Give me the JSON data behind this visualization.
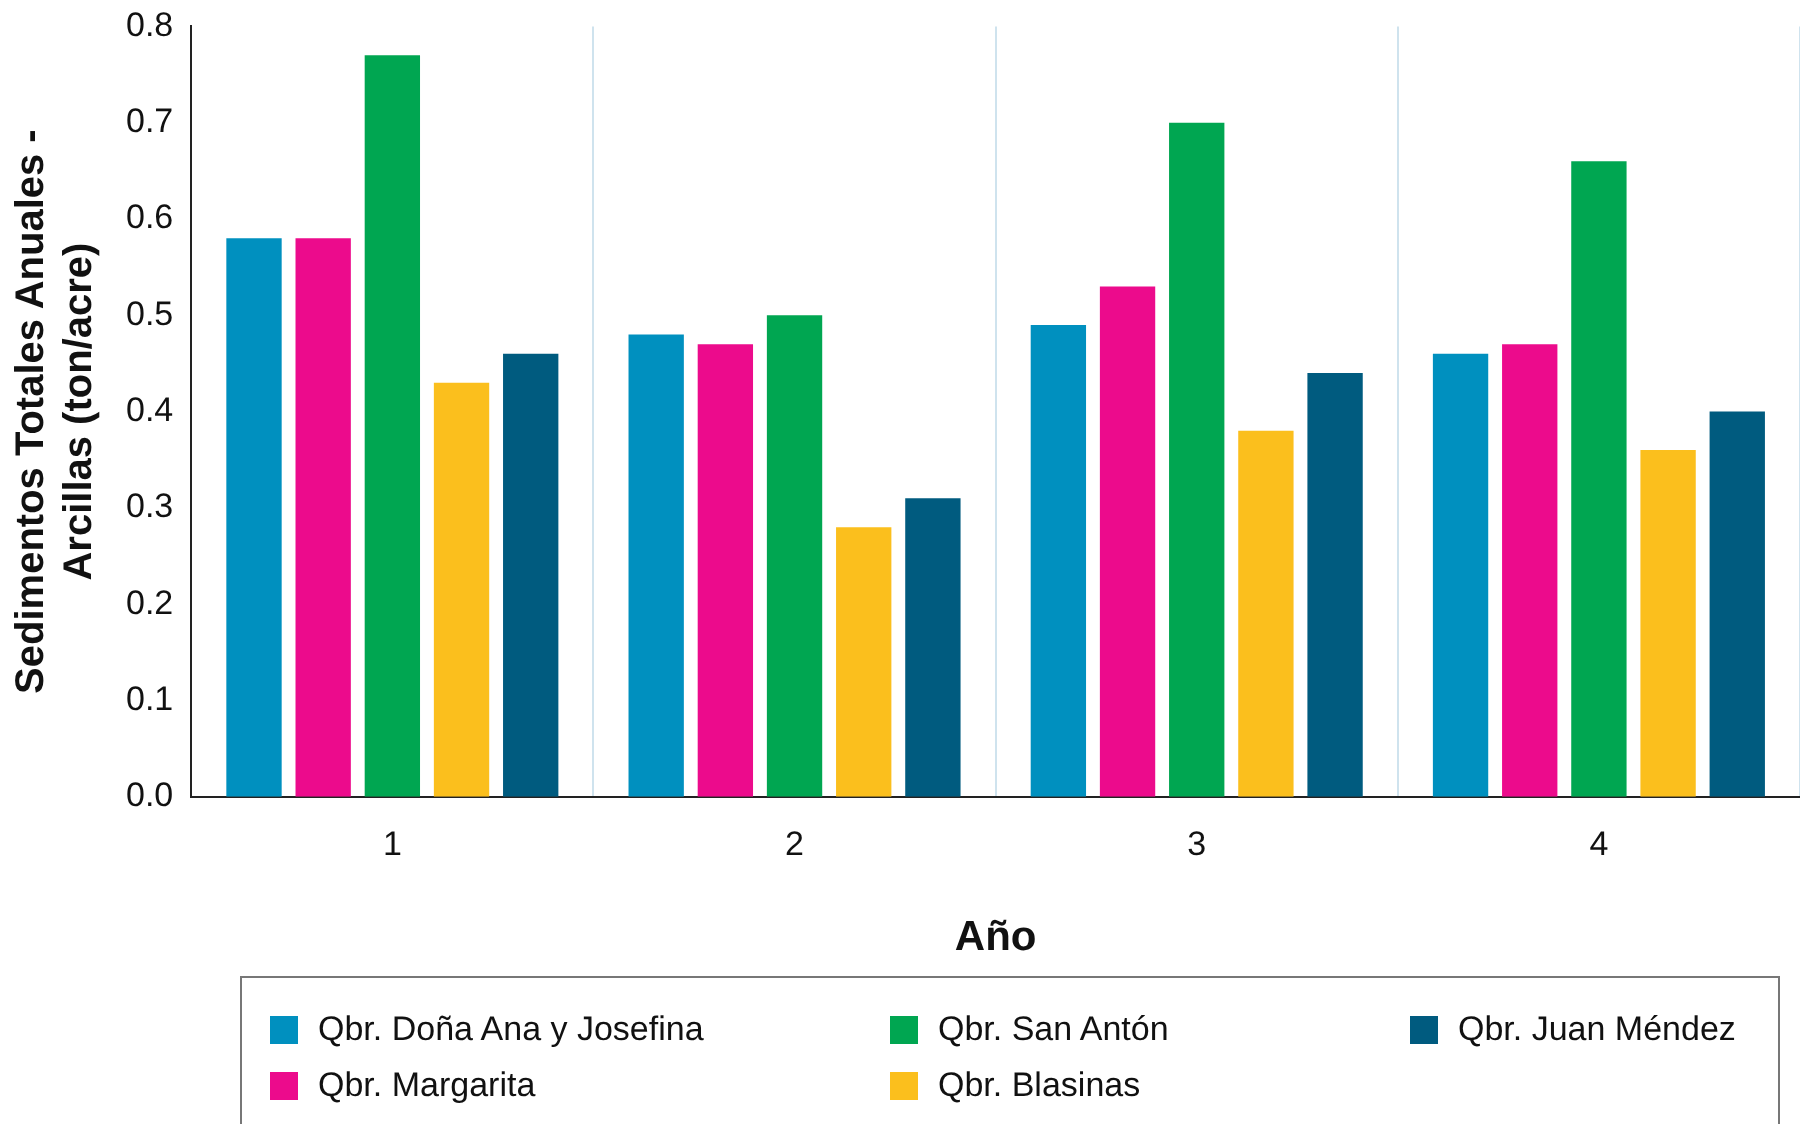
{
  "chart_data": {
    "type": "bar",
    "xlabel": "Año",
    "ylabel": "Sedimentos Totales Anuales -\nArcillas (ton/acre)",
    "categories": [
      "1",
      "2",
      "3",
      "4"
    ],
    "series": [
      {
        "name": "Qbr. Doña Ana y Josefina",
        "color": "#0090bf",
        "values": [
          0.58,
          0.48,
          0.49,
          0.46
        ]
      },
      {
        "name": "Qbr. Margarita",
        "color": "#ec0b8c",
        "values": [
          0.58,
          0.47,
          0.53,
          0.47
        ]
      },
      {
        "name": "Qbr. San Antón",
        "color": "#00a651",
        "values": [
          0.77,
          0.5,
          0.7,
          0.66
        ]
      },
      {
        "name": "Qbr. Blasinas",
        "color": "#fbbf1d",
        "values": [
          0.43,
          0.28,
          0.38,
          0.36
        ]
      },
      {
        "name": "Qbr. Juan Méndez",
        "color": "#005b7f",
        "values": [
          0.46,
          0.31,
          0.44,
          0.4
        ]
      }
    ],
    "ylim": [
      0,
      0.8
    ],
    "yticks": [
      {
        "value": 0,
        "label": "0.0"
      },
      {
        "value": 0.1,
        "label": "0.1"
      },
      {
        "value": 0.2,
        "label": "0.2"
      },
      {
        "value": 0.3,
        "label": "0.3"
      },
      {
        "value": 0.4,
        "label": "0.4"
      },
      {
        "value": 0.5,
        "label": "0.5"
      },
      {
        "value": 0.6,
        "label": "0.6"
      },
      {
        "value": 0.7,
        "label": "0.7"
      },
      {
        "value": 0.8,
        "label": "0.8"
      }
    ],
    "grid": "x",
    "legend": "bottom"
  }
}
